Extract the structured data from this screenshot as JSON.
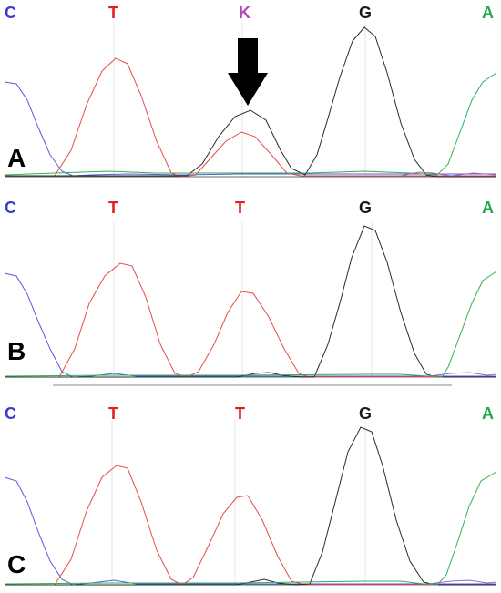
{
  "colors": {
    "C": "#3b3bd0",
    "T": "#e02020",
    "K": "#b347b8",
    "G": "#1a1a1a",
    "A": "#20a84a",
    "trace_C": "#5a5ae0",
    "trace_T": "#e84a4a",
    "trace_G": "#2a2a2a",
    "trace_A": "#30b050",
    "baseline": "#444444"
  },
  "panels": [
    {
      "label": "A",
      "bases": [
        {
          "letter": "C",
          "colorKey": "C"
        },
        {
          "letter": "T",
          "colorKey": "T"
        },
        {
          "letter": "K",
          "colorKey": "K"
        },
        {
          "letter": "G",
          "colorKey": "G"
        },
        {
          "letter": "A",
          "colorKey": "A"
        }
      ],
      "has_arrow": true
    },
    {
      "label": "B",
      "bases": [
        {
          "letter": "C",
          "colorKey": "C"
        },
        {
          "letter": "T",
          "colorKey": "T"
        },
        {
          "letter": "T",
          "colorKey": "T"
        },
        {
          "letter": "G",
          "colorKey": "G"
        },
        {
          "letter": "A",
          "colorKey": "A"
        }
      ],
      "has_arrow": false
    },
    {
      "label": "C",
      "bases": [
        {
          "letter": "C",
          "colorKey": "C"
        },
        {
          "letter": "T",
          "colorKey": "T"
        },
        {
          "letter": "T",
          "colorKey": "T"
        },
        {
          "letter": "G",
          "colorKey": "G"
        },
        {
          "letter": "A",
          "colorKey": "A"
        }
      ],
      "has_arrow": false
    }
  ]
}
